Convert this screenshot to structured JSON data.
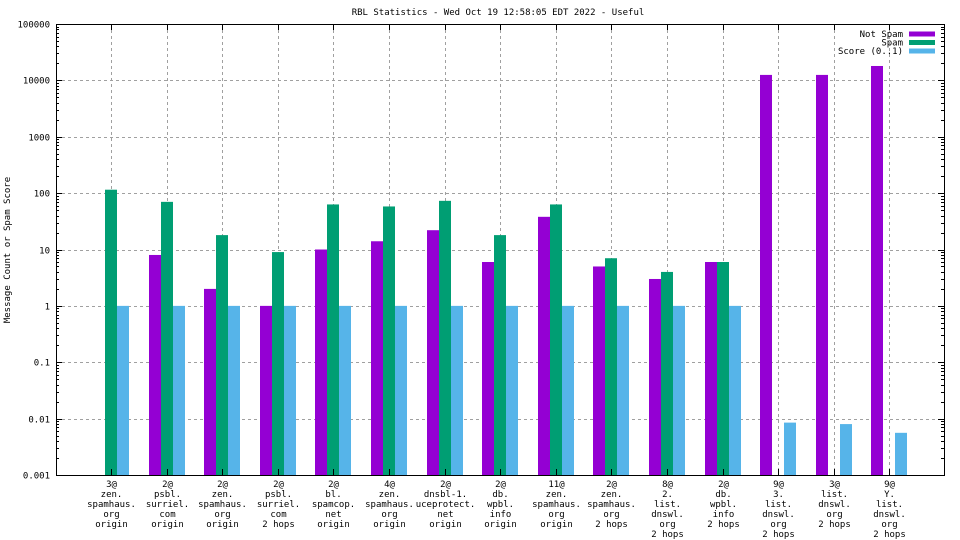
{
  "chart_data": {
    "type": "bar",
    "title": "RBL Statistics - Wed Oct 19 12:58:05 EDT 2022 - Useful",
    "xlabel": "",
    "ylabel": "Message Count or Spam Score",
    "yscale": "log",
    "ylim": [
      0.001,
      100000
    ],
    "yticks": [
      "0.001",
      "0.01",
      "0.1",
      "1",
      "10",
      "100",
      "1000",
      "10000",
      "100000"
    ],
    "grid": true,
    "legend_position": "top-right",
    "categories": [
      [
        "3@",
        "zen.",
        "spamhaus.",
        "org",
        "origin"
      ],
      [
        "2@",
        "psbl.",
        "surriel.",
        "com",
        "origin"
      ],
      [
        "2@",
        "zen.",
        "spamhaus.",
        "org",
        "origin"
      ],
      [
        "2@",
        "psbl.",
        "surriel.",
        "com",
        "2 hops"
      ],
      [
        "2@",
        "bl.",
        "spamcop.",
        "net",
        "origin"
      ],
      [
        "4@",
        "zen.",
        "spamhaus.",
        "org",
        "origin"
      ],
      [
        "2@",
        "dnsbl-1.",
        "uceprotect.",
        "net",
        "origin"
      ],
      [
        "2@",
        "db.",
        "wpbl.",
        "info",
        "origin"
      ],
      [
        "11@",
        "zen.",
        "spamhaus.",
        "org",
        "origin"
      ],
      [
        "2@",
        "zen.",
        "spamhaus.",
        "org",
        "2 hops"
      ],
      [
        "8@",
        "2.",
        "list.",
        "dnswl.",
        "org",
        "2 hops"
      ],
      [
        "2@",
        "db.",
        "wpbl.",
        "info",
        "2 hops"
      ],
      [
        "9@",
        "3.",
        "list.",
        "dnswl.",
        "org",
        "2 hops"
      ],
      [
        "3@",
        "list.",
        "dnswl.",
        "org",
        "2 hops"
      ],
      [
        "9@",
        "Y.",
        "list.",
        "dnswl.",
        "org",
        "2 hops"
      ]
    ],
    "series": [
      {
        "name": "Not Spam",
        "color": "#9400d3",
        "values": [
          0,
          8,
          2,
          1,
          10,
          14,
          22,
          6,
          38,
          5,
          3,
          6,
          12500,
          12500,
          18000
        ]
      },
      {
        "name": "Spam",
        "color": "#009e73",
        "values": [
          115,
          70,
          18,
          9,
          63,
          58,
          73,
          18,
          63,
          7,
          4,
          6,
          0,
          0,
          0
        ]
      },
      {
        "name": "Score (0..1)",
        "color": "#56b4e9",
        "values": [
          1,
          1,
          1,
          1,
          1,
          1,
          1,
          1,
          1,
          1,
          1,
          1,
          0.0085,
          0.008,
          0.0056
        ]
      }
    ]
  }
}
